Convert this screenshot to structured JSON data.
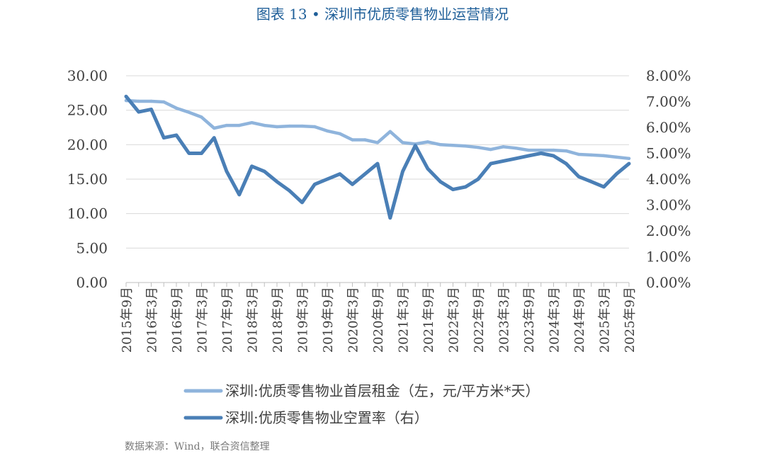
{
  "page": {
    "title": "图表 13 • 深圳市优质零售物业运营情况",
    "source": "数据来源：Wind，联合资信整理"
  },
  "chart_data": {
    "type": "line",
    "x_labels": [
      "2015年9月",
      "2016年3月",
      "2016年9月",
      "2017年3月",
      "2017年9月",
      "2018年3月",
      "2018年9月",
      "2019年3月",
      "2019年9月",
      "2020年3月",
      "2020年9月",
      "2021年3月",
      "2021年9月",
      "2022年3月",
      "2022年9月",
      "2023年3月",
      "2023年9月",
      "2024年3月",
      "2024年9月",
      "2025年3月",
      "2025年9月"
    ],
    "x": [
      2015.75,
      2016.0,
      2016.25,
      2016.5,
      2016.75,
      2017.0,
      2017.25,
      2017.5,
      2017.75,
      2018.0,
      2018.25,
      2018.5,
      2018.75,
      2019.0,
      2019.25,
      2019.5,
      2019.75,
      2020.0,
      2020.25,
      2020.5,
      2020.75,
      2021.0,
      2021.25,
      2021.5,
      2021.75,
      2022.0,
      2022.25,
      2022.5,
      2022.75,
      2023.0,
      2023.25,
      2023.5,
      2023.75,
      2024.0,
      2024.25,
      2024.5,
      2024.75,
      2025.0,
      2025.25,
      2025.5,
      2025.75
    ],
    "left_axis": {
      "ylim": [
        0,
        30
      ],
      "ticks": [
        "0.00",
        "5.00",
        "10.00",
        "15.00",
        "20.00",
        "25.00",
        "30.00"
      ]
    },
    "right_axis": {
      "ylim": [
        0,
        8
      ],
      "ticks": [
        "0.00%",
        "1.00%",
        "2.00%",
        "3.00%",
        "4.00%",
        "5.00%",
        "6.00%",
        "7.00%",
        "8.00%"
      ]
    },
    "series": [
      {
        "name": "深圳:优质零售物业首层租金（左，元/平方米*天）",
        "axis": "left",
        "color": "#8fb4dc",
        "values": [
          26.4,
          26.3,
          26.3,
          26.2,
          25.3,
          24.7,
          24.0,
          22.4,
          22.8,
          22.8,
          23.2,
          22.8,
          22.6,
          22.7,
          22.7,
          22.6,
          22.0,
          21.6,
          20.7,
          20.7,
          20.3,
          21.9,
          20.3,
          20.1,
          20.4,
          20.0,
          19.9,
          19.8,
          19.6,
          19.3,
          19.7,
          19.5,
          19.2,
          19.2,
          19.2,
          19.1,
          18.6,
          18.5,
          18.4,
          18.2,
          18.0
        ]
      },
      {
        "name": "深圳:优质零售物业空置率（右）",
        "axis": "right",
        "color": "#4a7fb6",
        "values": [
          7.2,
          6.6,
          6.7,
          5.6,
          5.7,
          5.0,
          5.0,
          5.6,
          4.3,
          3.4,
          4.5,
          4.3,
          3.9,
          3.55,
          3.1,
          3.8,
          4.0,
          4.2,
          3.8,
          4.2,
          4.6,
          2.5,
          4.3,
          5.3,
          4.4,
          3.9,
          3.6,
          3.7,
          4.0,
          4.6,
          4.7,
          4.8,
          4.9,
          5.0,
          4.9,
          4.6,
          4.1,
          3.9,
          3.7,
          4.2,
          4.6
        ]
      }
    ],
    "grid": "horizontal",
    "legend_position": "bottom"
  }
}
